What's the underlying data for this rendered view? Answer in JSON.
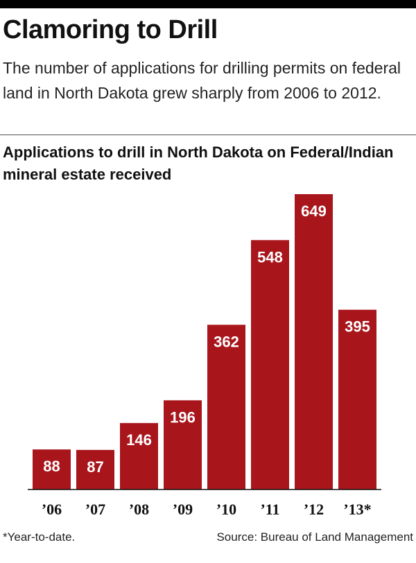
{
  "headline": "Clamoring to Drill",
  "dek": "The number of applications for drilling permits on federal land in North Dakota grew sharply from 2006 to 2012.",
  "footnote": "*Year-to-date.",
  "source": "Source: Bureau of Land Management",
  "colors": {
    "bar": "#a8161c",
    "rule": "#000000"
  },
  "chart_data": {
    "type": "bar",
    "title": "Applications to drill in North Dakota on Federal/Indian mineral estate received",
    "xlabel": "",
    "ylabel": "",
    "categories": [
      "’06",
      "’07",
      "’08",
      "’09",
      "’10",
      "’11",
      "’12",
      "’13*"
    ],
    "values": [
      88,
      87,
      146,
      196,
      362,
      548,
      649,
      395
    ],
    "data_labels": [
      "88",
      "87",
      "146",
      "196",
      "362",
      "548",
      "649",
      "395"
    ],
    "ylim": [
      0,
      649
    ],
    "grid": false,
    "legend": "none"
  }
}
